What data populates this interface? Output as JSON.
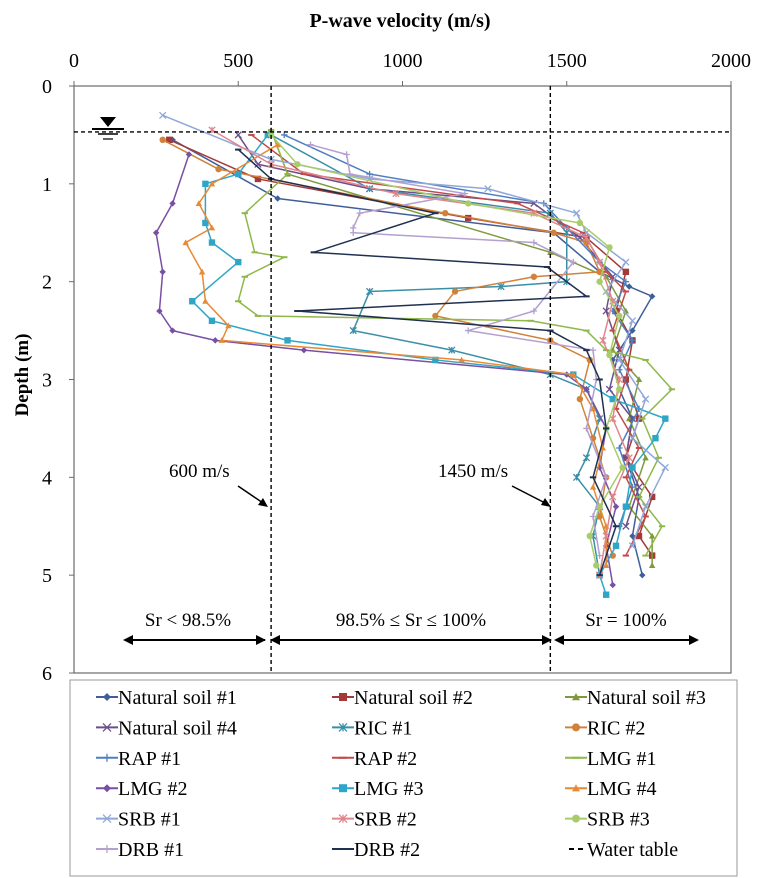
{
  "chart_data": {
    "type": "line",
    "title": "P-wave velocity (m/s)",
    "xlabel": "P-wave velocity (m/s)",
    "ylabel": "Depth (m)",
    "xlim": [
      0,
      2000
    ],
    "ylim": [
      0,
      6
    ],
    "y_inverted": true,
    "x_axis_position": "top",
    "xticks": [
      "0",
      "500",
      "1000",
      "1500",
      "2000"
    ],
    "yticks": [
      "0",
      "1",
      "2",
      "3",
      "4",
      "5",
      "6"
    ],
    "grid": false,
    "legend_position": "bottom",
    "reference_lines": [
      {
        "type": "vertical",
        "x": 600,
        "style": "dashed",
        "label": "600 m/s"
      },
      {
        "type": "vertical",
        "x": 1450,
        "style": "dashed",
        "label": "1450 m/s"
      },
      {
        "type": "horizontal",
        "y": 0.47,
        "style": "dashed",
        "label": "Water table"
      }
    ],
    "zone_labels": [
      "Sr < 98.5%",
      "98.5% ≤ Sr ≤ 100%",
      "Sr = 100%"
    ],
    "series": [
      {
        "name": "Natural soil #1",
        "color": "#3f5f9a",
        "marker": "diamond",
        "points": [
          [
            300,
            0.55
          ],
          [
            620,
            1.15
          ],
          [
            1460,
            1.5
          ],
          [
            1600,
            1.9
          ],
          [
            1690,
            2.05
          ],
          [
            1760,
            2.15
          ],
          [
            1700,
            2.5
          ],
          [
            1640,
            2.8
          ],
          [
            1660,
            3.1
          ],
          [
            1700,
            3.4
          ],
          [
            1680,
            3.8
          ],
          [
            1720,
            4.2
          ],
          [
            1700,
            4.6
          ],
          [
            1730,
            5.0
          ]
        ]
      },
      {
        "name": "Natural soil #2",
        "color": "#a33a3a",
        "marker": "square",
        "points": [
          [
            290,
            0.55
          ],
          [
            560,
            0.95
          ],
          [
            1200,
            1.35
          ],
          [
            1560,
            1.55
          ],
          [
            1680,
            1.9
          ],
          [
            1650,
            2.3
          ],
          [
            1700,
            2.6
          ],
          [
            1680,
            3.0
          ],
          [
            1720,
            3.4
          ],
          [
            1680,
            3.8
          ],
          [
            1760,
            4.2
          ],
          [
            1720,
            4.6
          ],
          [
            1760,
            4.8
          ]
        ]
      },
      {
        "name": "Natural soil #3",
        "color": "#7f9a3e",
        "marker": "triangle",
        "points": [
          [
            600,
            0.45
          ],
          [
            650,
            0.9
          ],
          [
            1450,
            1.7
          ],
          [
            1620,
            1.95
          ],
          [
            1680,
            2.3
          ],
          [
            1640,
            2.7
          ],
          [
            1720,
            3.0
          ],
          [
            1690,
            3.4
          ],
          [
            1740,
            3.8
          ],
          [
            1690,
            4.3
          ],
          [
            1760,
            4.6
          ],
          [
            1760,
            4.9
          ]
        ]
      },
      {
        "name": "Natural soil #4",
        "color": "#6a4f8a",
        "marker": "x",
        "points": [
          [
            500,
            0.5
          ],
          [
            560,
            0.8
          ],
          [
            900,
            1.05
          ],
          [
            1400,
            1.2
          ],
          [
            1540,
            1.55
          ],
          [
            1640,
            1.95
          ],
          [
            1620,
            2.3
          ],
          [
            1660,
            2.7
          ],
          [
            1630,
            3.1
          ],
          [
            1700,
            3.4
          ],
          [
            1680,
            3.8
          ],
          [
            1720,
            4.1
          ],
          [
            1680,
            4.5
          ]
        ]
      },
      {
        "name": "RIC #1",
        "color": "#3a8fa8",
        "marker": "star",
        "points": [
          [
            600,
            0.5
          ],
          [
            900,
            1.05
          ],
          [
            1450,
            1.3
          ],
          [
            1500,
            1.5
          ],
          [
            1500,
            2.0
          ],
          [
            1300,
            2.05
          ],
          [
            900,
            2.1
          ],
          [
            850,
            2.5
          ],
          [
            1150,
            2.7
          ],
          [
            1450,
            2.95
          ],
          [
            1560,
            3.1
          ],
          [
            1600,
            3.4
          ],
          [
            1560,
            3.8
          ],
          [
            1530,
            4.0
          ],
          [
            1600,
            4.3
          ],
          [
            1580,
            4.6
          ],
          [
            1600,
            5.0
          ]
        ]
      },
      {
        "name": "RIC #2",
        "color": "#d1823a",
        "marker": "circle",
        "points": [
          [
            270,
            0.55
          ],
          [
            440,
            0.85
          ],
          [
            1130,
            1.3
          ],
          [
            1460,
            1.5
          ],
          [
            1560,
            1.6
          ],
          [
            1600,
            1.9
          ],
          [
            1400,
            1.95
          ],
          [
            1160,
            2.1
          ],
          [
            1100,
            2.35
          ],
          [
            1450,
            2.6
          ],
          [
            1570,
            2.8
          ],
          [
            1540,
            3.2
          ],
          [
            1580,
            3.6
          ],
          [
            1620,
            4.0
          ],
          [
            1600,
            4.4
          ],
          [
            1640,
            4.8
          ]
        ]
      },
      {
        "name": "RAP #1",
        "color": "#4f7fc0",
        "marker": "plus",
        "points": [
          [
            640,
            0.5
          ],
          [
            900,
            0.9
          ],
          [
            1430,
            1.2
          ],
          [
            1500,
            1.45
          ],
          [
            1600,
            1.8
          ],
          [
            1680,
            2.0
          ],
          [
            1640,
            2.3
          ],
          [
            1700,
            2.6
          ],
          [
            1660,
            2.9
          ],
          [
            1720,
            3.3
          ],
          [
            1660,
            3.7
          ],
          [
            1700,
            4.1
          ],
          [
            1660,
            4.5
          ]
        ]
      },
      {
        "name": "RAP #2",
        "color": "#c24a4a",
        "marker": "dash",
        "points": [
          [
            540,
            0.5
          ],
          [
            700,
            0.9
          ],
          [
            1350,
            1.2
          ],
          [
            1550,
            1.5
          ],
          [
            1620,
            1.9
          ],
          [
            1680,
            2.1
          ],
          [
            1640,
            2.5
          ],
          [
            1690,
            2.9
          ],
          [
            1650,
            3.3
          ],
          [
            1720,
            3.7
          ],
          [
            1680,
            4.0
          ],
          [
            1740,
            4.4
          ],
          [
            1680,
            4.8
          ]
        ]
      },
      {
        "name": "LMG #1",
        "color": "#8fb84a",
        "marker": "dash",
        "points": [
          [
            600,
            0.45
          ],
          [
            650,
            0.9
          ],
          [
            520,
            1.3
          ],
          [
            550,
            1.7
          ],
          [
            640,
            1.75
          ],
          [
            520,
            1.95
          ],
          [
            500,
            2.2
          ],
          [
            560,
            2.35
          ],
          [
            1390,
            2.4
          ],
          [
            1560,
            2.5
          ],
          [
            1620,
            2.7
          ],
          [
            1740,
            2.8
          ],
          [
            1820,
            3.1
          ],
          [
            1730,
            3.4
          ],
          [
            1780,
            3.8
          ],
          [
            1720,
            4.2
          ],
          [
            1790,
            4.5
          ],
          [
            1740,
            4.8
          ]
        ]
      },
      {
        "name": "LMG #2",
        "color": "#7a4fa3",
        "marker": "diamond",
        "points": [
          [
            350,
            0.7
          ],
          [
            300,
            1.2
          ],
          [
            250,
            1.5
          ],
          [
            270,
            1.9
          ],
          [
            260,
            2.3
          ],
          [
            300,
            2.5
          ],
          [
            430,
            2.6
          ],
          [
            700,
            2.7
          ],
          [
            1500,
            2.95
          ],
          [
            1560,
            3.1
          ],
          [
            1620,
            3.5
          ],
          [
            1600,
            3.9
          ],
          [
            1650,
            4.3
          ],
          [
            1620,
            4.7
          ],
          [
            1640,
            5.1
          ]
        ]
      },
      {
        "name": "LMG #3",
        "color": "#2fa6c8",
        "marker": "square",
        "points": [
          [
            590,
            0.5
          ],
          [
            500,
            0.9
          ],
          [
            400,
            1.0
          ],
          [
            400,
            1.4
          ],
          [
            420,
            1.6
          ],
          [
            500,
            1.8
          ],
          [
            360,
            2.2
          ],
          [
            420,
            2.4
          ],
          [
            650,
            2.6
          ],
          [
            1100,
            2.8
          ],
          [
            1520,
            2.95
          ],
          [
            1640,
            3.2
          ],
          [
            1800,
            3.4
          ],
          [
            1770,
            3.6
          ],
          [
            1700,
            3.9
          ],
          [
            1680,
            4.3
          ],
          [
            1650,
            4.7
          ],
          [
            1600,
            5.0
          ],
          [
            1620,
            5.2
          ]
        ]
      },
      {
        "name": "LMG #4",
        "color": "#e88a35",
        "marker": "triangle",
        "points": [
          [
            620,
            0.6
          ],
          [
            420,
            1.0
          ],
          [
            380,
            1.2
          ],
          [
            420,
            1.45
          ],
          [
            340,
            1.6
          ],
          [
            390,
            1.9
          ],
          [
            400,
            2.2
          ],
          [
            470,
            2.45
          ],
          [
            450,
            2.6
          ],
          [
            1180,
            2.8
          ],
          [
            1520,
            2.95
          ],
          [
            1580,
            3.3
          ],
          [
            1610,
            3.7
          ],
          [
            1580,
            4.1
          ],
          [
            1620,
            4.5
          ],
          [
            1620,
            4.9
          ]
        ]
      },
      {
        "name": "SRB #1",
        "color": "#8fa8d8",
        "marker": "x",
        "points": [
          [
            270,
            0.3
          ],
          [
            600,
            0.75
          ],
          [
            900,
            0.95
          ],
          [
            1260,
            1.05
          ],
          [
            1530,
            1.3
          ],
          [
            1560,
            1.5
          ],
          [
            1680,
            1.8
          ],
          [
            1620,
            2.1
          ],
          [
            1700,
            2.4
          ],
          [
            1660,
            2.8
          ],
          [
            1740,
            3.2
          ],
          [
            1700,
            3.6
          ],
          [
            1800,
            3.9
          ],
          [
            1740,
            4.3
          ],
          [
            1700,
            4.7
          ]
        ]
      },
      {
        "name": "SRB #2",
        "color": "#e0858a",
        "marker": "star",
        "points": [
          [
            420,
            0.45
          ],
          [
            600,
            0.8
          ],
          [
            980,
            1.1
          ],
          [
            1400,
            1.3
          ],
          [
            1560,
            1.55
          ],
          [
            1600,
            1.8
          ],
          [
            1640,
            2.2
          ],
          [
            1610,
            2.6
          ],
          [
            1660,
            3.0
          ],
          [
            1640,
            3.4
          ],
          [
            1690,
            3.8
          ],
          [
            1640,
            4.2
          ],
          [
            1620,
            4.6
          ],
          [
            1600,
            5.0
          ]
        ]
      },
      {
        "name": "SRB #3",
        "color": "#a8cc6a",
        "marker": "circle",
        "points": [
          [
            600,
            0.5
          ],
          [
            680,
            0.8
          ],
          [
            1200,
            1.2
          ],
          [
            1540,
            1.4
          ],
          [
            1630,
            1.65
          ],
          [
            1600,
            2.0
          ],
          [
            1660,
            2.35
          ],
          [
            1630,
            2.75
          ],
          [
            1660,
            3.1
          ],
          [
            1620,
            3.5
          ],
          [
            1670,
            3.9
          ],
          [
            1600,
            4.3
          ],
          [
            1570,
            4.6
          ],
          [
            1590,
            4.9
          ]
        ]
      },
      {
        "name": "DRB #1",
        "color": "#b4a0d0",
        "marker": "plus",
        "points": [
          [
            720,
            0.6
          ],
          [
            830,
            0.7
          ],
          [
            840,
            0.9
          ],
          [
            1190,
            1.1
          ],
          [
            870,
            1.3
          ],
          [
            850,
            1.45
          ],
          [
            850,
            1.5
          ],
          [
            1400,
            1.6
          ],
          [
            1520,
            1.8
          ],
          [
            1400,
            2.3
          ],
          [
            1200,
            2.5
          ],
          [
            1580,
            2.7
          ],
          [
            1590,
            3.0
          ],
          [
            1560,
            3.5
          ],
          [
            1620,
            4.0
          ],
          [
            1580,
            4.4
          ],
          [
            1600,
            4.8
          ]
        ]
      },
      {
        "name": "DRB #2",
        "color": "#1f3050",
        "marker": "dash",
        "points": [
          [
            500,
            0.65
          ],
          [
            600,
            0.95
          ],
          [
            1100,
            1.3
          ],
          [
            730,
            1.7
          ],
          [
            1440,
            1.85
          ],
          [
            1560,
            2.15
          ],
          [
            680,
            2.3
          ],
          [
            1450,
            2.5
          ],
          [
            1560,
            2.7
          ],
          [
            1600,
            3.0
          ],
          [
            1620,
            3.5
          ],
          [
            1580,
            4.0
          ],
          [
            1650,
            4.5
          ],
          [
            1600,
            5.0
          ]
        ]
      }
    ]
  },
  "legend": {
    "items": [
      "Natural soil #1",
      "Natural soil #2",
      "Natural soil #3",
      "Natural soil #4",
      "RIC #1",
      "RIC #2",
      "RAP #1",
      "RAP #2",
      "LMG #1",
      "LMG #2",
      "LMG #3",
      "LMG #4",
      "SRB #1",
      "SRB #2",
      "SRB #3",
      "DRB #1",
      "DRB #2",
      "Water table"
    ]
  }
}
